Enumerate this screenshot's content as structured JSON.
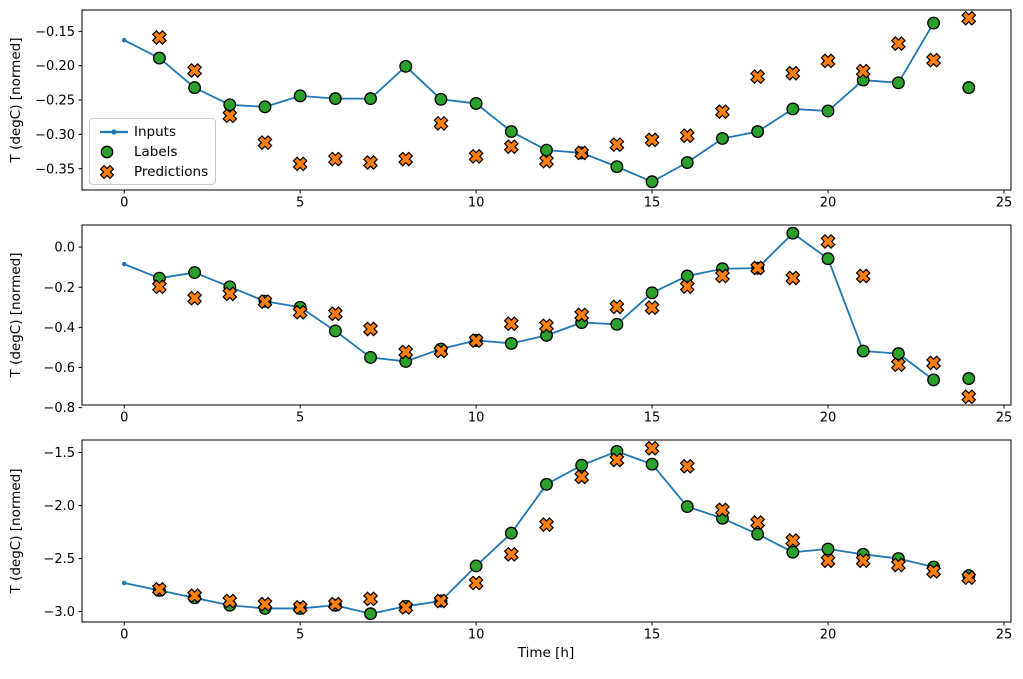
{
  "figure": {
    "background": "#ffffff",
    "axis_color": "#000000",
    "tick_color": "#000000",
    "legend_border_color": "#cccccc"
  },
  "legend": {
    "position": "upper-left-of-first-subplot",
    "items": [
      {
        "icon": "line-with-dot",
        "label": "Inputs"
      },
      {
        "icon": "filled-circle",
        "label": "Labels"
      },
      {
        "icon": "filled-x",
        "label": "Predictions"
      }
    ]
  },
  "chart_data": [
    {
      "type": "line+scatter",
      "title": "",
      "xlabel": "",
      "ylabel": "T (degC) [normed]",
      "xlim": [
        -1.2,
        25.2
      ],
      "ylim": [
        -0.381,
        -0.119
      ],
      "xtick_values": [
        0,
        5,
        10,
        15,
        20,
        25
      ],
      "xtick_labels": [
        "0",
        "5",
        "10",
        "15",
        "20",
        "25"
      ],
      "ytick_values": [
        -0.35,
        -0.3,
        -0.25,
        -0.2,
        -0.15
      ],
      "ytick_labels": [
        "−0.35",
        "−0.30",
        "−0.25",
        "−0.20",
        "−0.15"
      ],
      "grid": false,
      "legend_visible": true,
      "series": [
        {
          "name": "Inputs",
          "kind": "line",
          "marker": "dot",
          "color": "#1f77b4",
          "edge": "#1f77b4",
          "x": [
            0,
            1,
            2,
            3,
            4,
            5,
            6,
            7,
            8,
            9,
            10,
            11,
            12,
            13,
            14,
            15,
            16,
            17,
            18,
            19,
            20,
            21,
            22,
            23
          ],
          "y": [
            -0.163,
            -0.189,
            -0.232,
            -0.257,
            -0.26,
            -0.244,
            -0.248,
            -0.248,
            -0.201,
            -0.249,
            -0.255,
            -0.296,
            -0.323,
            -0.327,
            -0.347,
            -0.369,
            -0.341,
            -0.306,
            -0.296,
            -0.263,
            -0.266,
            -0.221,
            -0.225,
            -0.138
          ]
        },
        {
          "name": "Labels",
          "kind": "scatter",
          "marker": "circle",
          "color": "#2ca02c",
          "edge": "#000000",
          "x": [
            1,
            2,
            3,
            4,
            5,
            6,
            7,
            8,
            9,
            10,
            11,
            12,
            13,
            14,
            15,
            16,
            17,
            18,
            19,
            20,
            21,
            22,
            23,
            24
          ],
          "y": [
            -0.189,
            -0.232,
            -0.257,
            -0.26,
            -0.244,
            -0.248,
            -0.248,
            -0.201,
            -0.249,
            -0.255,
            -0.296,
            -0.323,
            -0.327,
            -0.347,
            -0.369,
            -0.341,
            -0.306,
            -0.296,
            -0.263,
            -0.266,
            -0.221,
            -0.225,
            -0.138,
            -0.232
          ]
        },
        {
          "name": "Predictions",
          "kind": "scatter",
          "marker": "X",
          "color": "#ff7f0e",
          "edge": "#000000",
          "x": [
            1,
            2,
            3,
            4,
            5,
            6,
            7,
            8,
            9,
            10,
            11,
            12,
            13,
            14,
            15,
            16,
            17,
            18,
            19,
            20,
            21,
            22,
            23,
            24
          ],
          "y": [
            -0.159,
            -0.207,
            -0.273,
            -0.312,
            -0.343,
            -0.336,
            -0.341,
            -0.336,
            -0.284,
            -0.332,
            -0.318,
            -0.339,
            -0.327,
            -0.315,
            -0.308,
            -0.302,
            -0.267,
            -0.216,
            -0.211,
            -0.193,
            -0.208,
            -0.168,
            -0.192,
            -0.131
          ]
        }
      ]
    },
    {
      "type": "line+scatter",
      "title": "",
      "xlabel": "",
      "ylabel": "T (degC) [normed]",
      "xlim": [
        -1.2,
        25.2
      ],
      "ylim": [
        -0.787,
        0.11
      ],
      "xtick_values": [
        0,
        5,
        10,
        15,
        20,
        25
      ],
      "xtick_labels": [
        "0",
        "5",
        "10",
        "15",
        "20",
        "25"
      ],
      "ytick_values": [
        -0.8,
        -0.6,
        -0.4,
        -0.2,
        0.0
      ],
      "ytick_labels": [
        "−0.8",
        "−0.6",
        "−0.4",
        "−0.2",
        "0.0"
      ],
      "grid": false,
      "legend_visible": false,
      "series": [
        {
          "name": "Inputs",
          "kind": "line",
          "marker": "dot",
          "color": "#1f77b4",
          "edge": "#1f77b4",
          "x": [
            0,
            1,
            2,
            3,
            4,
            5,
            6,
            7,
            8,
            9,
            10,
            11,
            12,
            13,
            14,
            15,
            16,
            17,
            18,
            19,
            20,
            21,
            22,
            23
          ],
          "y": [
            -0.085,
            -0.155,
            -0.127,
            -0.198,
            -0.27,
            -0.3,
            -0.418,
            -0.55,
            -0.57,
            -0.508,
            -0.465,
            -0.48,
            -0.44,
            -0.376,
            -0.385,
            -0.228,
            -0.144,
            -0.108,
            -0.105,
            0.069,
            -0.058,
            -0.518,
            -0.531,
            -0.662
          ]
        },
        {
          "name": "Labels",
          "kind": "scatter",
          "marker": "circle",
          "color": "#2ca02c",
          "edge": "#000000",
          "x": [
            1,
            2,
            3,
            4,
            5,
            6,
            7,
            8,
            9,
            10,
            11,
            12,
            13,
            14,
            15,
            16,
            17,
            18,
            19,
            20,
            21,
            22,
            23,
            24
          ],
          "y": [
            -0.155,
            -0.127,
            -0.198,
            -0.27,
            -0.3,
            -0.418,
            -0.55,
            -0.57,
            -0.508,
            -0.465,
            -0.48,
            -0.44,
            -0.376,
            -0.385,
            -0.228,
            -0.144,
            -0.108,
            -0.105,
            0.069,
            -0.058,
            -0.518,
            -0.531,
            -0.662,
            -0.655
          ]
        },
        {
          "name": "Predictions",
          "kind": "scatter",
          "marker": "X",
          "color": "#ff7f0e",
          "edge": "#000000",
          "x": [
            1,
            2,
            3,
            4,
            5,
            6,
            7,
            8,
            9,
            10,
            11,
            12,
            13,
            14,
            15,
            16,
            17,
            18,
            19,
            20,
            21,
            22,
            23,
            24
          ],
          "y": [
            -0.198,
            -0.255,
            -0.233,
            -0.272,
            -0.325,
            -0.332,
            -0.408,
            -0.523,
            -0.518,
            -0.466,
            -0.382,
            -0.392,
            -0.338,
            -0.298,
            -0.302,
            -0.197,
            -0.144,
            -0.104,
            -0.154,
            0.028,
            -0.144,
            -0.586,
            -0.577,
            -0.746
          ]
        }
      ]
    },
    {
      "type": "line+scatter",
      "title": "",
      "xlabel": "Time [h]",
      "ylabel": "T (degC) [normed]",
      "xlim": [
        -1.2,
        25.2
      ],
      "ylim": [
        -3.098,
        -1.382
      ],
      "xtick_values": [
        0,
        5,
        10,
        15,
        20,
        25
      ],
      "xtick_labels": [
        "0",
        "5",
        "10",
        "15",
        "20",
        "25"
      ],
      "ytick_values": [
        -3.0,
        -2.5,
        -2.0,
        -1.5
      ],
      "ytick_labels": [
        "−3.0",
        "−2.5",
        "−2.0",
        "−1.5"
      ],
      "grid": false,
      "legend_visible": false,
      "series": [
        {
          "name": "Inputs",
          "kind": "line",
          "marker": "dot",
          "color": "#1f77b4",
          "edge": "#1f77b4",
          "x": [
            0,
            1,
            2,
            3,
            4,
            5,
            6,
            7,
            8,
            9,
            10,
            11,
            12,
            13,
            14,
            15,
            16,
            17,
            18,
            19,
            20,
            21,
            22,
            23
          ],
          "y": [
            -2.73,
            -2.8,
            -2.87,
            -2.94,
            -2.97,
            -2.97,
            -2.94,
            -3.02,
            -2.95,
            -2.9,
            -2.57,
            -2.26,
            -1.8,
            -1.62,
            -1.49,
            -1.61,
            -2.01,
            -2.12,
            -2.27,
            -2.44,
            -2.41,
            -2.46,
            -2.5,
            -2.58
          ]
        },
        {
          "name": "Labels",
          "kind": "scatter",
          "marker": "circle",
          "color": "#2ca02c",
          "edge": "#000000",
          "x": [
            1,
            2,
            3,
            4,
            5,
            6,
            7,
            8,
            9,
            10,
            11,
            12,
            13,
            14,
            15,
            16,
            17,
            18,
            19,
            20,
            21,
            22,
            23,
            24
          ],
          "y": [
            -2.8,
            -2.87,
            -2.94,
            -2.97,
            -2.97,
            -2.94,
            -3.02,
            -2.95,
            -2.9,
            -2.57,
            -2.26,
            -1.8,
            -1.62,
            -1.49,
            -1.61,
            -2.01,
            -2.12,
            -2.27,
            -2.44,
            -2.41,
            -2.46,
            -2.5,
            -2.58,
            -2.66
          ]
        },
        {
          "name": "Predictions",
          "kind": "scatter",
          "marker": "X",
          "color": "#ff7f0e",
          "edge": "#000000",
          "x": [
            1,
            2,
            3,
            4,
            5,
            6,
            7,
            8,
            9,
            10,
            11,
            12,
            13,
            14,
            15,
            16,
            17,
            18,
            19,
            20,
            21,
            22,
            23,
            24
          ],
          "y": [
            -2.79,
            -2.85,
            -2.9,
            -2.93,
            -2.96,
            -2.93,
            -2.88,
            -2.96,
            -2.9,
            -2.73,
            -2.46,
            -2.18,
            -1.73,
            -1.57,
            -1.46,
            -1.63,
            -2.04,
            -2.16,
            -2.33,
            -2.52,
            -2.52,
            -2.56,
            -2.62,
            -2.68
          ]
        }
      ]
    }
  ]
}
